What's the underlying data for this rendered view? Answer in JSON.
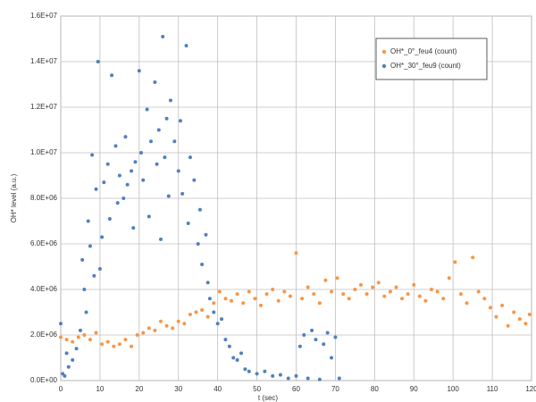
{
  "chart_data": {
    "type": "scatter",
    "xlabel": "t (sec)",
    "ylabel": "OH* level (a.u.)",
    "xlim": [
      0,
      120
    ],
    "xticks": [
      0,
      10,
      20,
      30,
      40,
      50,
      60,
      70,
      80,
      90,
      100,
      110,
      120
    ],
    "ylim": [
      0,
      16000000
    ],
    "yticks": [
      {
        "value": 0,
        "label": "0.0E+00"
      },
      {
        "value": 2000000,
        "label": "2.0E+06"
      },
      {
        "value": 4000000,
        "label": "4.0E+06"
      },
      {
        "value": 6000000,
        "label": "6.0E+06"
      },
      {
        "value": 8000000,
        "label": "8.0E+06"
      },
      {
        "value": 10000000,
        "label": "1.0E+07"
      },
      {
        "value": 12000000,
        "label": "1.2E+07"
      },
      {
        "value": 14000000,
        "label": "1.4E+07"
      },
      {
        "value": 16000000,
        "label": "1.6E+07"
      }
    ],
    "grid": true,
    "legend": "top-right",
    "series": [
      {
        "name": "OH*_0°_feu4 (count)",
        "color": "#f79646",
        "x": [
          0,
          1.5,
          3,
          4.5,
          6,
          7.5,
          9,
          10.5,
          12,
          13.5,
          15,
          16.5,
          18,
          19.5,
          21,
          22.5,
          24,
          25.5,
          27,
          28.5,
          30,
          31.5,
          33,
          34.5,
          36,
          37.5,
          39,
          40.5,
          42,
          43.5,
          45,
          46.5,
          48,
          49.5,
          51,
          52.5,
          54,
          55.5,
          57,
          58.5,
          60,
          61.5,
          63,
          64.5,
          66,
          67.5,
          69,
          70.5,
          72,
          73.5,
          75,
          76.5,
          78,
          79.5,
          81,
          82.5,
          84,
          85.5,
          87,
          88.5,
          90,
          91.5,
          93,
          94.5,
          96,
          97.5,
          99,
          100.5,
          102,
          103.5,
          105,
          106.5,
          108,
          109.5,
          111,
          112.5,
          114,
          115.5,
          117,
          118.5,
          119.5
        ],
        "values": [
          1900000.0,
          1800000.0,
          1700000.0,
          1900000.0,
          2000000.0,
          1800000.0,
          2100000.0,
          1600000.0,
          1700000.0,
          1500000.0,
          1600000.0,
          1800000.0,
          1500000.0,
          2000000.0,
          2100000.0,
          2300000.0,
          2200000.0,
          2600000.0,
          2400000.0,
          2300000.0,
          2600000.0,
          2500000.0,
          2900000.0,
          3000000.0,
          3100000.0,
          2800000.0,
          3400000.0,
          3900000.0,
          3600000.0,
          3500000.0,
          3800000.0,
          3400000.0,
          3900000.0,
          3600000.0,
          3300000.0,
          3800000.0,
          4000000.0,
          3500000.0,
          3900000.0,
          3700000.0,
          5600000.0,
          3600000.0,
          4100000.0,
          3800000.0,
          3400000.0,
          4400000.0,
          3900000.0,
          4500000.0,
          3800000.0,
          3600000.0,
          4000000.0,
          4200000.0,
          3800000.0,
          4100000.0,
          4300000.0,
          3700000.0,
          3900000.0,
          4100000.0,
          3600000.0,
          3800000.0,
          4200000.0,
          3700000.0,
          3500000.0,
          4000000.0,
          3900000.0,
          3600000.0,
          4500000.0,
          5200000.0,
          3800000.0,
          3400000.0,
          5400000.0,
          3900000.0,
          3600000.0,
          3200000.0,
          2800000.0,
          3300000.0,
          2400000.0,
          3000000.0,
          2700000.0,
          2500000.0,
          2900000.0
        ]
      },
      {
        "name": "OH*_30°_feu9 (count)",
        "color": "#4f81bd",
        "x": [
          0,
          0.5,
          1,
          1.5,
          2,
          3,
          4,
          5,
          5.5,
          6,
          6.5,
          7,
          7.5,
          8,
          8.5,
          9,
          9.5,
          10,
          10.5,
          11,
          12,
          12.5,
          13,
          14,
          14.5,
          15,
          16,
          16.5,
          17,
          18,
          18.5,
          19,
          20,
          20.5,
          21,
          22,
          22.5,
          23,
          24,
          24.5,
          25,
          25.5,
          26,
          26.5,
          27,
          27.5,
          28,
          29,
          30,
          30.5,
          31,
          32,
          32.5,
          33,
          34,
          35,
          35.5,
          36,
          37,
          37.5,
          38,
          39,
          40,
          41,
          42,
          43,
          44,
          45,
          46,
          47,
          48,
          50,
          52,
          54,
          56,
          58,
          60,
          61,
          62,
          63,
          64,
          65,
          66,
          67,
          68,
          69,
          70,
          71
        ],
        "values": [
          2500000.0,
          300000.0,
          200000.0,
          1200000.0,
          600000.0,
          900000.0,
          1400000.0,
          2200000.0,
          5300000.0,
          4000000.0,
          3000000.0,
          7000000.0,
          5900000.0,
          9900000.0,
          4600000.0,
          8400000.0,
          14000000.0,
          4900000.0,
          6300000.0,
          8700000.0,
          9500000.0,
          7100000.0,
          13400000.0,
          10300000.0,
          7800000.0,
          9000000.0,
          8000000.0,
          10700000.0,
          8600000.0,
          9200000.0,
          6700000.0,
          9600000.0,
          13600000.0,
          10000000.0,
          8800000.0,
          11900000.0,
          7200000.0,
          10500000.0,
          13100000.0,
          9500000.0,
          11000000.0,
          6200000.0,
          15100000.0,
          9800000.0,
          11500000.0,
          8100000.0,
          12300000.0,
          10500000.0,
          9200000.0,
          11400000.0,
          8200000.0,
          14700000.0,
          6900000.0,
          9800000.0,
          8800000.0,
          6000000.0,
          7500000.0,
          5100000.0,
          6400000.0,
          4300000.0,
          3600000.0,
          3000000.0,
          2500000.0,
          2700000.0,
          1800000.0,
          1500000.0,
          1000000.0,
          900000.0,
          1200000.0,
          500000.0,
          400000.0,
          300000.0,
          400000.0,
          200000.0,
          250000.0,
          100000.0,
          200000.0,
          1500000.0,
          2000000.0,
          100000.0,
          2200000.0,
          1800000.0,
          50000.0,
          1600000.0,
          2100000.0,
          1000000.0,
          1900000.0,
          100000.0
        ]
      }
    ]
  }
}
